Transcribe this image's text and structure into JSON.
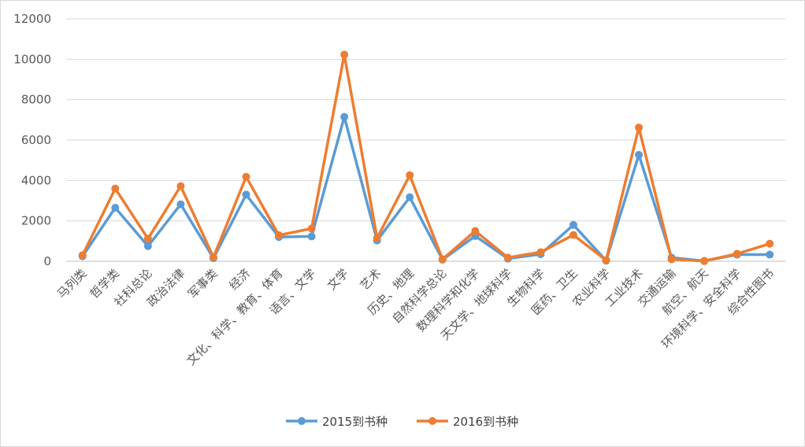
{
  "chart_data": {
    "type": "line",
    "title": "",
    "xlabel": "",
    "ylabel": "",
    "ylim": [
      0,
      12000
    ],
    "yticks": [
      0,
      2000,
      4000,
      6000,
      8000,
      10000,
      12000
    ],
    "grid": true,
    "legend_position": "bottom",
    "categories": [
      "马列类",
      "哲学类",
      "社科总论",
      "政治法律",
      "军事类",
      "经济",
      "文化、科学、教育、体育",
      "语言、文学",
      "文学",
      "艺术",
      "历史、地理",
      "自然科学总论",
      "数理科学和化学",
      "天文学、地球科学",
      "生物科学",
      "医药、卫生",
      "农业科学",
      "工业技术",
      "交通运输",
      "航空、航天",
      "环境科学、安全科学",
      "综合性图书"
    ],
    "series": [
      {
        "name": "2015到书种",
        "color": "#5b9bd5",
        "values": [
          250,
          2650,
          750,
          2820,
          150,
          3300,
          1200,
          1230,
          7150,
          1030,
          3170,
          80,
          1250,
          130,
          350,
          1800,
          30,
          5270,
          180,
          20,
          330,
          330
        ]
      },
      {
        "name": "2016到书种",
        "color": "#ed7d31",
        "values": [
          300,
          3600,
          1120,
          3720,
          200,
          4180,
          1290,
          1620,
          10230,
          1150,
          4260,
          100,
          1500,
          180,
          450,
          1300,
          50,
          6620,
          100,
          10,
          370,
          870
        ]
      }
    ]
  }
}
